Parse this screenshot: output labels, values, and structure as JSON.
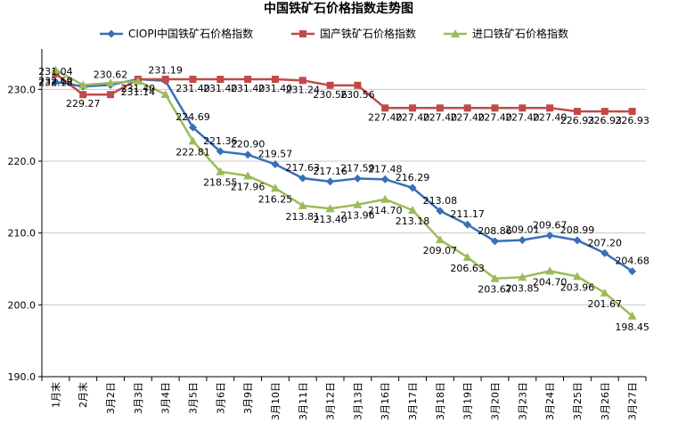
{
  "chart_data": {
    "type": "line",
    "title": "中国铁矿石价格指数走势图",
    "categories": [
      "1月末",
      "2月末",
      "3月2日",
      "3月3日",
      "3月4日",
      "3月5日",
      "3月6日",
      "3月9日",
      "3月10日",
      "3月11日",
      "3月12日",
      "3月13日",
      "3月16日",
      "3月17日",
      "3月18日",
      "3月19日",
      "3月20日",
      "3月23日",
      "3月24日",
      "3月25日",
      "3月26日",
      "3月27日"
    ],
    "ylim": [
      190,
      235
    ],
    "yticks": [
      "190.0",
      "200.0",
      "210.0",
      "220.0",
      "230.0"
    ],
    "ytick_values": [
      190,
      200,
      210,
      220,
      230
    ],
    "grid": true,
    "legend": "top",
    "series": [
      {
        "name": "CIOPI中国铁矿石价格指数",
        "color": "#3a6fb7",
        "marker": "diamond",
        "values": [
          231.04,
          230.4,
          230.62,
          231.4,
          231.19,
          224.69,
          221.36,
          220.9,
          219.57,
          217.63,
          217.16,
          217.59,
          217.48,
          216.29,
          213.08,
          211.17,
          208.86,
          209.01,
          209.67,
          208.99,
          207.2,
          204.68
        ],
        "labels": [
          "231.04",
          "",
          "230.62",
          "",
          "231.19",
          "224.69",
          "221.36",
          "220.90",
          "219.57",
          "217.63",
          "217.16",
          "217.59",
          "217.48",
          "216.29",
          "213.08",
          "211.17",
          "208.86",
          "209.01",
          "209.67",
          "208.99",
          "207.20",
          "204.68"
        ]
      },
      {
        "name": "国产铁矿石价格指数",
        "color": "#be4b48",
        "marker": "square",
        "values": [
          232.18,
          229.27,
          229.27,
          231.4,
          231.4,
          231.4,
          231.4,
          231.4,
          231.4,
          231.24,
          230.56,
          230.56,
          227.4,
          227.4,
          227.4,
          227.4,
          227.4,
          227.4,
          227.4,
          226.93,
          226.93,
          226.93
        ],
        "labels": [
          "232.18",
          "229.27",
          "",
          "231.40",
          "",
          "231.40",
          "231.40",
          "231.40",
          "231.40",
          "231.24",
          "230.56",
          "230.56",
          "227.40",
          "227.40",
          "227.40",
          "227.40",
          "227.40",
          "227.40",
          "227.40",
          "226.93",
          "226.93",
          "226.93"
        ]
      },
      {
        "name": "进口铁矿石价格指数",
        "color": "#9bbb59",
        "marker": "triangle",
        "values": [
          232.69,
          230.6,
          230.9,
          231.14,
          229.3,
          222.81,
          218.55,
          217.96,
          216.25,
          213.81,
          213.4,
          213.96,
          214.7,
          213.18,
          209.07,
          206.63,
          203.67,
          203.85,
          204.7,
          203.96,
          201.67,
          198.45
        ],
        "labels": [
          "232.69",
          "",
          "",
          "231.14",
          "",
          "222.81",
          "218.55",
          "217.96",
          "216.25",
          "213.81",
          "213.40",
          "213.96",
          "214.70",
          "213.18",
          "209.07",
          "206.63",
          "203.67",
          "203.85",
          "204.70",
          "203.96",
          "201.67",
          "198.45"
        ]
      }
    ]
  }
}
